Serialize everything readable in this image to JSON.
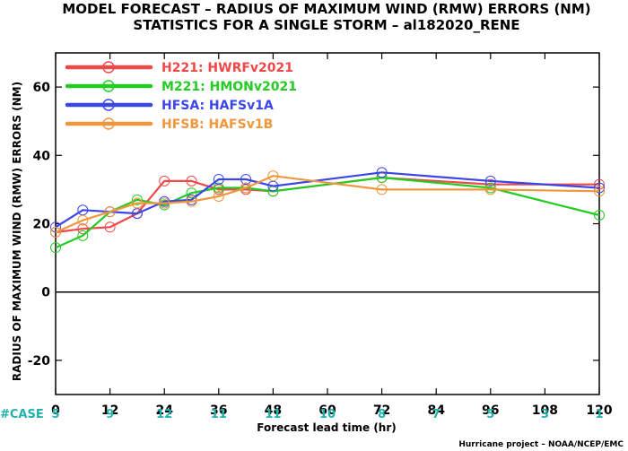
{
  "title": {
    "line1": "MODEL FORECAST – RADIUS OF MAXIMUM WIND (RMW) ERRORS (NM)",
    "line2": "STATISTICS FOR A SINGLE STORM – al182020_RENE"
  },
  "credit": "Hurricane project – NOAA/NCEP/EMC",
  "case_label": "#CASE",
  "case_counts": [
    {
      "x": 0,
      "n": "5"
    },
    {
      "x": 12,
      "n": "9"
    },
    {
      "x": 24,
      "n": "12"
    },
    {
      "x": 36,
      "n": "11"
    },
    {
      "x": 48,
      "n": "11"
    },
    {
      "x": 60,
      "n": "10"
    },
    {
      "x": 72,
      "n": "8"
    },
    {
      "x": 84,
      "n": "7"
    },
    {
      "x": 96,
      "n": "5"
    },
    {
      "x": 108,
      "n": "3"
    },
    {
      "x": 120,
      "n": "1"
    }
  ],
  "colors": {
    "case_text": "#20b2aa",
    "zero_line": "#000000"
  },
  "chart_data": {
    "type": "line",
    "xlabel": "Forecast lead time (hr)",
    "ylabel": "RADIUS OF MAXIMUM WIND (RMW) ERRORS (NM)",
    "xlim": [
      0,
      120
    ],
    "ylim": [
      -30,
      70
    ],
    "xticks": [
      0,
      12,
      24,
      36,
      48,
      60,
      72,
      84,
      96,
      108,
      120
    ],
    "yticks": [
      -20,
      0,
      20,
      40,
      60
    ],
    "ytick_labels": [
      "-20",
      "0",
      "20",
      "40",
      "60"
    ],
    "grid": false,
    "legend_position": "top-left",
    "series": [
      {
        "name": "H221: HWRFv2021",
        "color": "#f04848",
        "x": [
          0,
          6,
          12,
          18,
          24,
          30,
          36,
          42,
          48,
          72,
          96,
          120
        ],
        "y": [
          17.5,
          18.5,
          19,
          23,
          32.5,
          32.5,
          30,
          30,
          29.5,
          33.5,
          31.5,
          31.5
        ]
      },
      {
        "name": "M221: HMONv2021",
        "color": "#22cc22",
        "x": [
          0,
          6,
          12,
          18,
          24,
          30,
          36,
          42,
          48,
          72,
          96,
          120
        ],
        "y": [
          13,
          16.5,
          23.5,
          27,
          25.5,
          29,
          30.5,
          30.5,
          29.5,
          33.5,
          30.5,
          22.5
        ]
      },
      {
        "name": "HFSA: HAFSv1A",
        "color": "#3c46e6",
        "x": [
          0,
          6,
          12,
          18,
          24,
          30,
          36,
          42,
          48,
          72,
          96,
          120
        ],
        "y": [
          19,
          24,
          23.5,
          23,
          26.5,
          27,
          33,
          33,
          31,
          35,
          32.5,
          30.5
        ]
      },
      {
        "name": "HFSB: HAFSv1B",
        "color": "#f0963c",
        "x": [
          0,
          6,
          12,
          18,
          24,
          30,
          36,
          42,
          48,
          72,
          96,
          120
        ],
        "y": [
          17.5,
          21,
          23.5,
          26,
          26,
          26.5,
          28,
          30.5,
          34,
          30,
          30,
          29.5
        ]
      }
    ]
  }
}
